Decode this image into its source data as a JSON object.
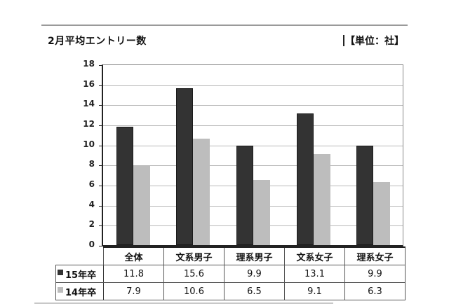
{
  "header": {
    "title": "2月平均エントリー数",
    "unit": "【単位：社】"
  },
  "colors": {
    "series_15": "#333333",
    "series_14": "#bdbdbd"
  },
  "chart_data": {
    "type": "bar",
    "title": "2月平均エントリー数",
    "unit": "単位：社",
    "categories": [
      "全体",
      "文系男子",
      "理系男子",
      "文系女子",
      "理系女子"
    ],
    "series": [
      {
        "name": "15年卒",
        "color": "#333333",
        "values": [
          11.8,
          15.6,
          9.9,
          13.1,
          9.9
        ]
      },
      {
        "name": "14年卒",
        "color": "#bdbdbd",
        "values": [
          7.9,
          10.6,
          6.5,
          9.1,
          6.3
        ]
      }
    ],
    "xlabel": "",
    "ylabel": "",
    "ylim": [
      0,
      18
    ],
    "yticks": [
      0,
      2,
      4,
      6,
      8,
      10,
      12,
      14,
      16,
      18
    ],
    "grid": true,
    "legend_position": "data-table",
    "data_table": true
  },
  "table": {
    "headers": [
      "全体",
      "文系男子",
      "理系男子",
      "文系女子",
      "理系女子"
    ],
    "rows": [
      {
        "label": "15年卒",
        "values": [
          "11.8",
          "15.6",
          "9.9",
          "13.1",
          "9.9"
        ]
      },
      {
        "label": "14年卒",
        "values": [
          "7.9",
          "10.6",
          "6.5",
          "9.1",
          "6.3"
        ]
      }
    ]
  }
}
